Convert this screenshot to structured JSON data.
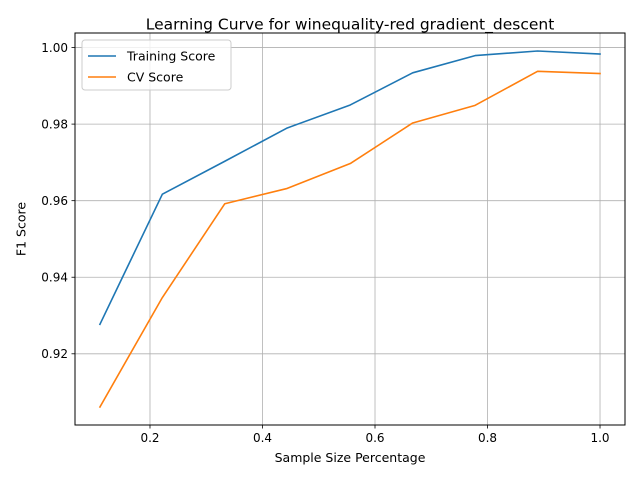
{
  "chart_data": {
    "type": "line",
    "title": "Learning Curve for winequality-red gradient_descent",
    "xlabel": "Sample Size Percentage",
    "ylabel": "F1 Score",
    "xlim": [
      0.0667,
      1.0444
    ],
    "ylim": [
      0.9014,
      1.0038
    ],
    "grid": true,
    "legend_position": "upper-left",
    "x": [
      0.111,
      0.222,
      0.333,
      0.444,
      0.556,
      0.667,
      0.778,
      0.889,
      1.0
    ],
    "x_ticks": [
      {
        "value": 0.2,
        "label": "0.2"
      },
      {
        "value": 0.4,
        "label": "0.4"
      },
      {
        "value": 0.6,
        "label": "0.6"
      },
      {
        "value": 0.8,
        "label": "0.8"
      },
      {
        "value": 1.0,
        "label": "1.0"
      }
    ],
    "y_ticks": [
      {
        "value": 0.92,
        "label": "0.92"
      },
      {
        "value": 0.94,
        "label": "0.94"
      },
      {
        "value": 0.96,
        "label": "0.96"
      },
      {
        "value": 0.98,
        "label": "0.98"
      },
      {
        "value": 1.0,
        "label": "1.00"
      }
    ],
    "series": [
      {
        "name": "Training Score",
        "color": "#1f77b4",
        "values": [
          0.9277,
          0.9617,
          0.9703,
          0.979,
          0.985,
          0.9934,
          0.9979,
          0.9991,
          0.9983
        ]
      },
      {
        "name": "CV Score",
        "color": "#ff7f0e",
        "values": [
          0.9061,
          0.9347,
          0.9592,
          0.9632,
          0.9697,
          0.9803,
          0.9849,
          0.9938,
          0.9932
        ]
      }
    ]
  }
}
